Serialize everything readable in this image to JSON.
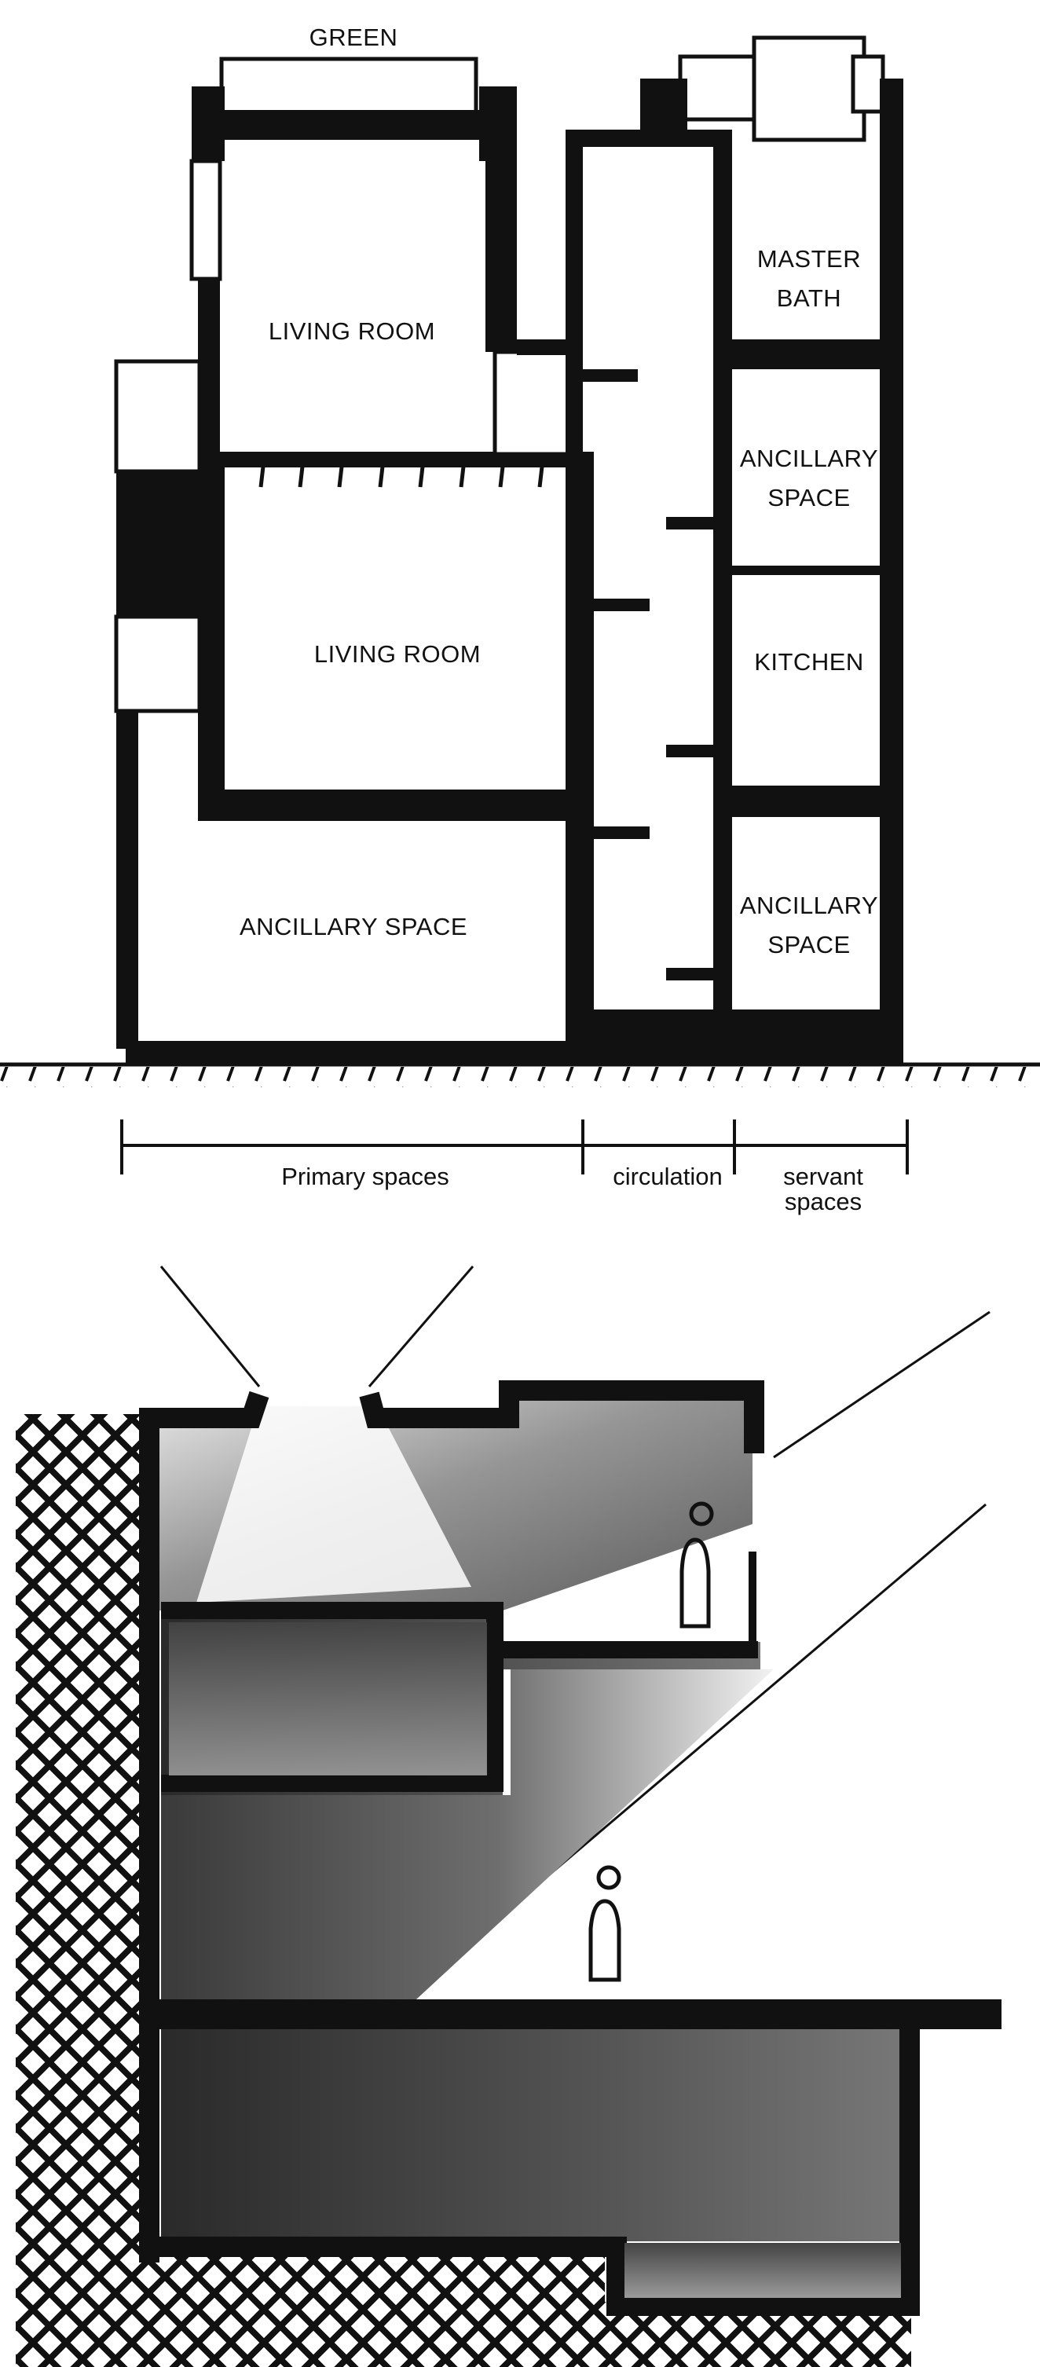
{
  "section": {
    "top_label": "GREEN",
    "rooms": {
      "living_room_upper": "LIVING ROOM",
      "living_room_lower": "LIVING ROOM",
      "ancillary_left": "ANCILLARY SPACE",
      "master_bath_1": "MASTER",
      "master_bath_2": "BATH",
      "ancillary_right_1a": "ANCILLARY",
      "ancillary_right_1b": "SPACE",
      "kitchen": "KITCHEN",
      "ancillary_right_2a": "ANCILLARY",
      "ancillary_right_2b": "SPACE"
    },
    "zones": {
      "primary": "Primary spaces",
      "circulation": "circulation",
      "servant_1": "servant",
      "servant_2": "spaces"
    }
  },
  "colors": {
    "ink": "#111111",
    "paper": "#ffffff",
    "shade_dark": "#555555",
    "shade_mid": "#8a8a8a"
  }
}
